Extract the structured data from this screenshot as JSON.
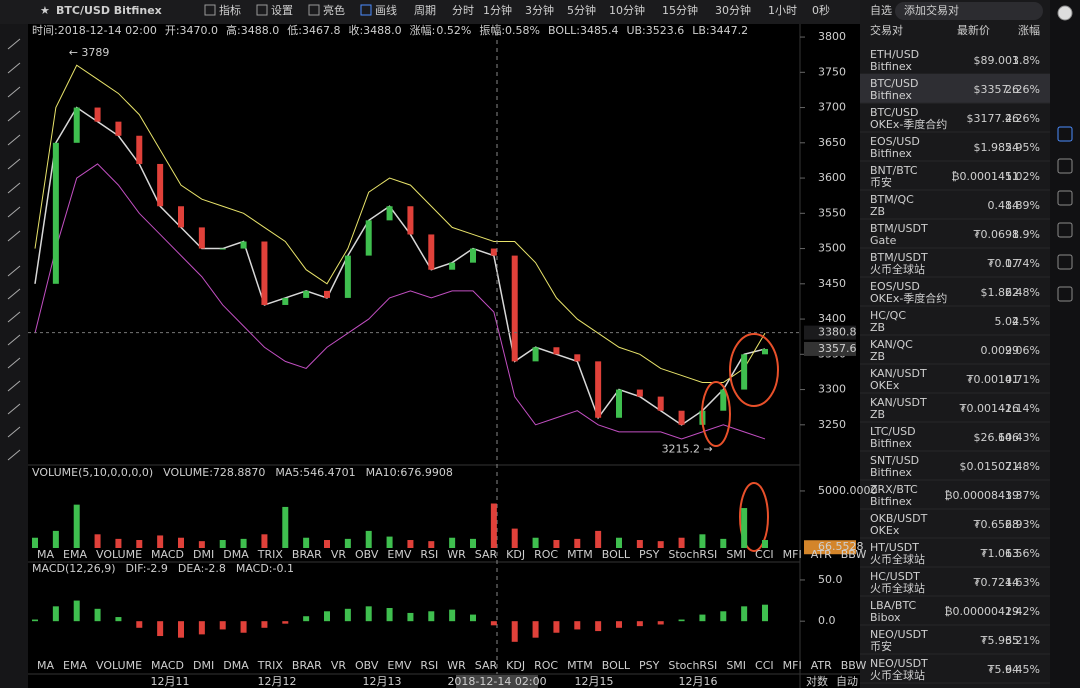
{
  "toolbar": {
    "pair": "BTC/USD Bitfinex",
    "items": [
      "指标",
      "设置",
      "亮色",
      "画线"
    ],
    "period": "周期",
    "intervals": [
      "分时",
      "1分钟",
      "3分钟",
      "5分钟",
      "10分钟",
      "15分钟",
      "30分钟",
      "1小时"
    ],
    "active_interval": 7,
    "countdown": "0秒"
  },
  "info_bar": [
    {
      "text": "时间:2018-12-14 02:00",
      "color": "#cfcfcf"
    },
    {
      "text": "开:3470.0",
      "color": "#cfcfcf"
    },
    {
      "text": "高:3488.0",
      "color": "#cfcfcf"
    },
    {
      "text": "低:3467.8",
      "color": "#cfcfcf"
    },
    {
      "text": "收:3488.0",
      "color": "#cfcfcf"
    },
    {
      "text": "涨幅:",
      "color": "#cfcfcf"
    },
    {
      "text": "0.52%",
      "color": "#3fbf4f"
    },
    {
      "text": "振幅:0.58%",
      "color": "#cfcfcf"
    },
    {
      "text": "BOLL:3485.4",
      "color": "#cfcfcf"
    },
    {
      "text": "UB:3523.6",
      "color": "#e8e36a"
    },
    {
      "text": "LB:3447.2",
      "color": "#d05fd0"
    }
  ],
  "chart_data": [
    {
      "type": "line",
      "ylim": [
        3193,
        3810
      ],
      "yticks": [
        3250,
        3300,
        3350,
        3400,
        3450,
        3500,
        3550,
        3600,
        3650,
        3700,
        3750,
        3800
      ],
      "series": [
        {
          "name": "close",
          "color": "#d8d8d8",
          "values": [
            3450,
            3650,
            3700,
            3680,
            3660,
            3620,
            3560,
            3530,
            3500,
            3500,
            3510,
            3420,
            3430,
            3440,
            3430,
            3490,
            3540,
            3560,
            3520,
            3470,
            3480,
            3500,
            3490,
            3340,
            3360,
            3350,
            3340,
            3260,
            3300,
            3290,
            3270,
            3250,
            3270,
            3300,
            3350,
            3357.6
          ]
        },
        {
          "name": "UB",
          "color": "#e8e36a",
          "values": [
            3500,
            3700,
            3760,
            3740,
            3720,
            3690,
            3640,
            3590,
            3570,
            3560,
            3550,
            3530,
            3510,
            3470,
            3450,
            3500,
            3580,
            3600,
            3590,
            3560,
            3530,
            3520,
            3510,
            3510,
            3480,
            3430,
            3400,
            3380,
            3360,
            3350,
            3330,
            3320,
            3310,
            3310,
            3330,
            3380
          ]
        },
        {
          "name": "LB",
          "color": "#c24fc2",
          "values": [
            3380,
            3500,
            3600,
            3620,
            3590,
            3550,
            3520,
            3490,
            3460,
            3420,
            3390,
            3360,
            3340,
            3330,
            3360,
            3380,
            3400,
            3430,
            3440,
            3430,
            3440,
            3440,
            3410,
            3290,
            3250,
            3260,
            3270,
            3250,
            3240,
            3240,
            3240,
            3230,
            3240,
            3250,
            3240,
            3230
          ]
        }
      ],
      "annotations": [
        {
          "text": "← 3789",
          "value": 3789,
          "index": 2
        },
        {
          "text": "3215.2 →",
          "value": 3215.2,
          "index": 31
        }
      ],
      "price_markers": [
        {
          "value": 3380.8,
          "label": "3380.8"
        },
        {
          "value": 3357.6,
          "label": "3357.6"
        }
      ],
      "x_labels": [
        "12月11",
        "12月12",
        "12月13",
        "2018-12-14 02:00",
        "12月15",
        "12月16"
      ],
      "crosshair_label": 3
    },
    {
      "type": "bar",
      "header": [
        "VOLUME(5,10,0,0,0,0)",
        "VOLUME:728.8870",
        "MA5:546.4701",
        "MA10:676.9908"
      ],
      "header_colors": [
        "#cfcfcf",
        "#cfcfcf",
        "#cfcfcf",
        "#e8e36a"
      ],
      "ylim": [
        0,
        5960
      ],
      "yticks": [
        {
          "value": 5000,
          "label": "5000.0000"
        }
      ],
      "marker": {
        "value": 66.5528,
        "label": "66.5528"
      },
      "values": [
        900,
        1500,
        3800,
        1200,
        800,
        700,
        1100,
        900,
        600,
        700,
        800,
        1200,
        3600,
        900,
        700,
        800,
        1500,
        1000,
        700,
        600,
        900,
        800,
        3900,
        1700,
        900,
        700,
        800,
        1500,
        900,
        700,
        600,
        900,
        1200,
        800,
        3500,
        700
      ],
      "up_color": "#3fbf4f",
      "down_color": "#e0413a"
    },
    {
      "type": "bar",
      "header": [
        "MACD(12,26,9)",
        "DIF:-2.9",
        "DEA:-2.8",
        "MACD:-0.1"
      ],
      "header_colors": [
        "#cfcfcf",
        "#cfcfcf",
        "#e8e36a",
        "#d05fd0"
      ],
      "ylim": [
        -41,
        56
      ],
      "yticks": [
        {
          "value": 50,
          "label": "50.0"
        },
        {
          "value": 0,
          "label": "0.0"
        }
      ],
      "values": [
        2,
        18,
        25,
        15,
        5,
        -8,
        -18,
        -20,
        -16,
        -10,
        -14,
        -8,
        -3,
        6,
        12,
        15,
        18,
        16,
        10,
        12,
        14,
        8,
        -5,
        -25,
        -20,
        -14,
        -10,
        -12,
        -8,
        -6,
        -4,
        2,
        8,
        12,
        18,
        20
      ],
      "up_color": "#3fbf4f",
      "down_color": "#e0413a"
    }
  ],
  "indicator_tabs": [
    "MA",
    "EMA",
    "VOLUME",
    "MACD",
    "DMI",
    "DMA",
    "TRIX",
    "BRAR",
    "VR",
    "OBV",
    "EMV",
    "RSI",
    "WR",
    "SAR",
    "KDJ",
    "ROC",
    "MTM",
    "BOLL",
    "PSY",
    "StochRSI",
    "SMI",
    "CCI",
    "MFI",
    "ATR",
    "BBW"
  ],
  "tab_rows": [
    {
      "active": 2,
      "used": 3
    },
    {
      "active": 3,
      "used": 2
    }
  ],
  "axis_modes": [
    "对数",
    "自动"
  ],
  "watchlist": {
    "title": "自选",
    "search": "添加交易对",
    "columns": [
      "交易对",
      "最新价",
      "涨幅"
    ],
    "selected": 1,
    "rows": [
      [
        "ETH/USD",
        "Bitfinex",
        "$89.001",
        "3.8%",
        true
      ],
      [
        "BTC/USD",
        "Bitfinex",
        "$3357.6",
        "2.26%",
        true
      ],
      [
        "BTC/USD",
        "OKEx-季度合约",
        "$3177.46",
        "2.26%",
        true
      ],
      [
        "EOS/USD",
        "Bitfinex",
        "$1.9854",
        "2.95%",
        true
      ],
      [
        "BNT/BTC",
        "币安",
        "₿0.0001451",
        "1.02%",
        true
      ],
      [
        "BTM/QC",
        "ZB",
        "0.484",
        "1.89%",
        true
      ],
      [
        "BTM/USDT",
        "Gate",
        "₮0.0698",
        "1.9%",
        true
      ],
      [
        "BTM/USDT",
        "火币全球站",
        "₮0.07",
        "1.74%",
        true
      ],
      [
        "EOS/USD",
        "OKEx-季度合约",
        "$1.862",
        "2.48%",
        true
      ],
      [
        "HC/QC",
        "ZB",
        "5.02",
        "4.5%",
        true
      ],
      [
        "KAN/QC",
        "ZB",
        "0.0099",
        "2.06%",
        true
      ],
      [
        "KAN/USDT",
        "OKEx",
        "₮0.00141",
        "0.71%",
        true
      ],
      [
        "KAN/USDT",
        "ZB",
        "₮0.001416",
        "-2.14%",
        false
      ],
      [
        "LTC/USD",
        "Bitfinex",
        "$26.646",
        "10.43%",
        true
      ],
      [
        "SNT/USD",
        "Bitfinex",
        "$0.015071",
        "2.48%",
        true
      ],
      [
        "ZRX/BTC",
        "Bitfinex",
        "₿0.00008439",
        "1.37%",
        true
      ],
      [
        "OKB/USDT",
        "OKEx",
        "₮0.6568",
        "2.93%",
        true
      ],
      [
        "HT/USDT",
        "火币全球站",
        "₮1.063",
        "1.56%",
        true
      ],
      [
        "HC/USDT",
        "火币全球站",
        "₮0.7214",
        "4.63%",
        true
      ],
      [
        "LBA/BTC",
        "Bibox",
        "₿0.00000429",
        "1.42%",
        true
      ],
      [
        "NEO/USDT",
        "币安",
        "₮5.935",
        "6.21%",
        true
      ],
      [
        "NEO/USDT",
        "火币全球站",
        "₮5.94",
        "6.45%",
        true
      ]
    ]
  }
}
